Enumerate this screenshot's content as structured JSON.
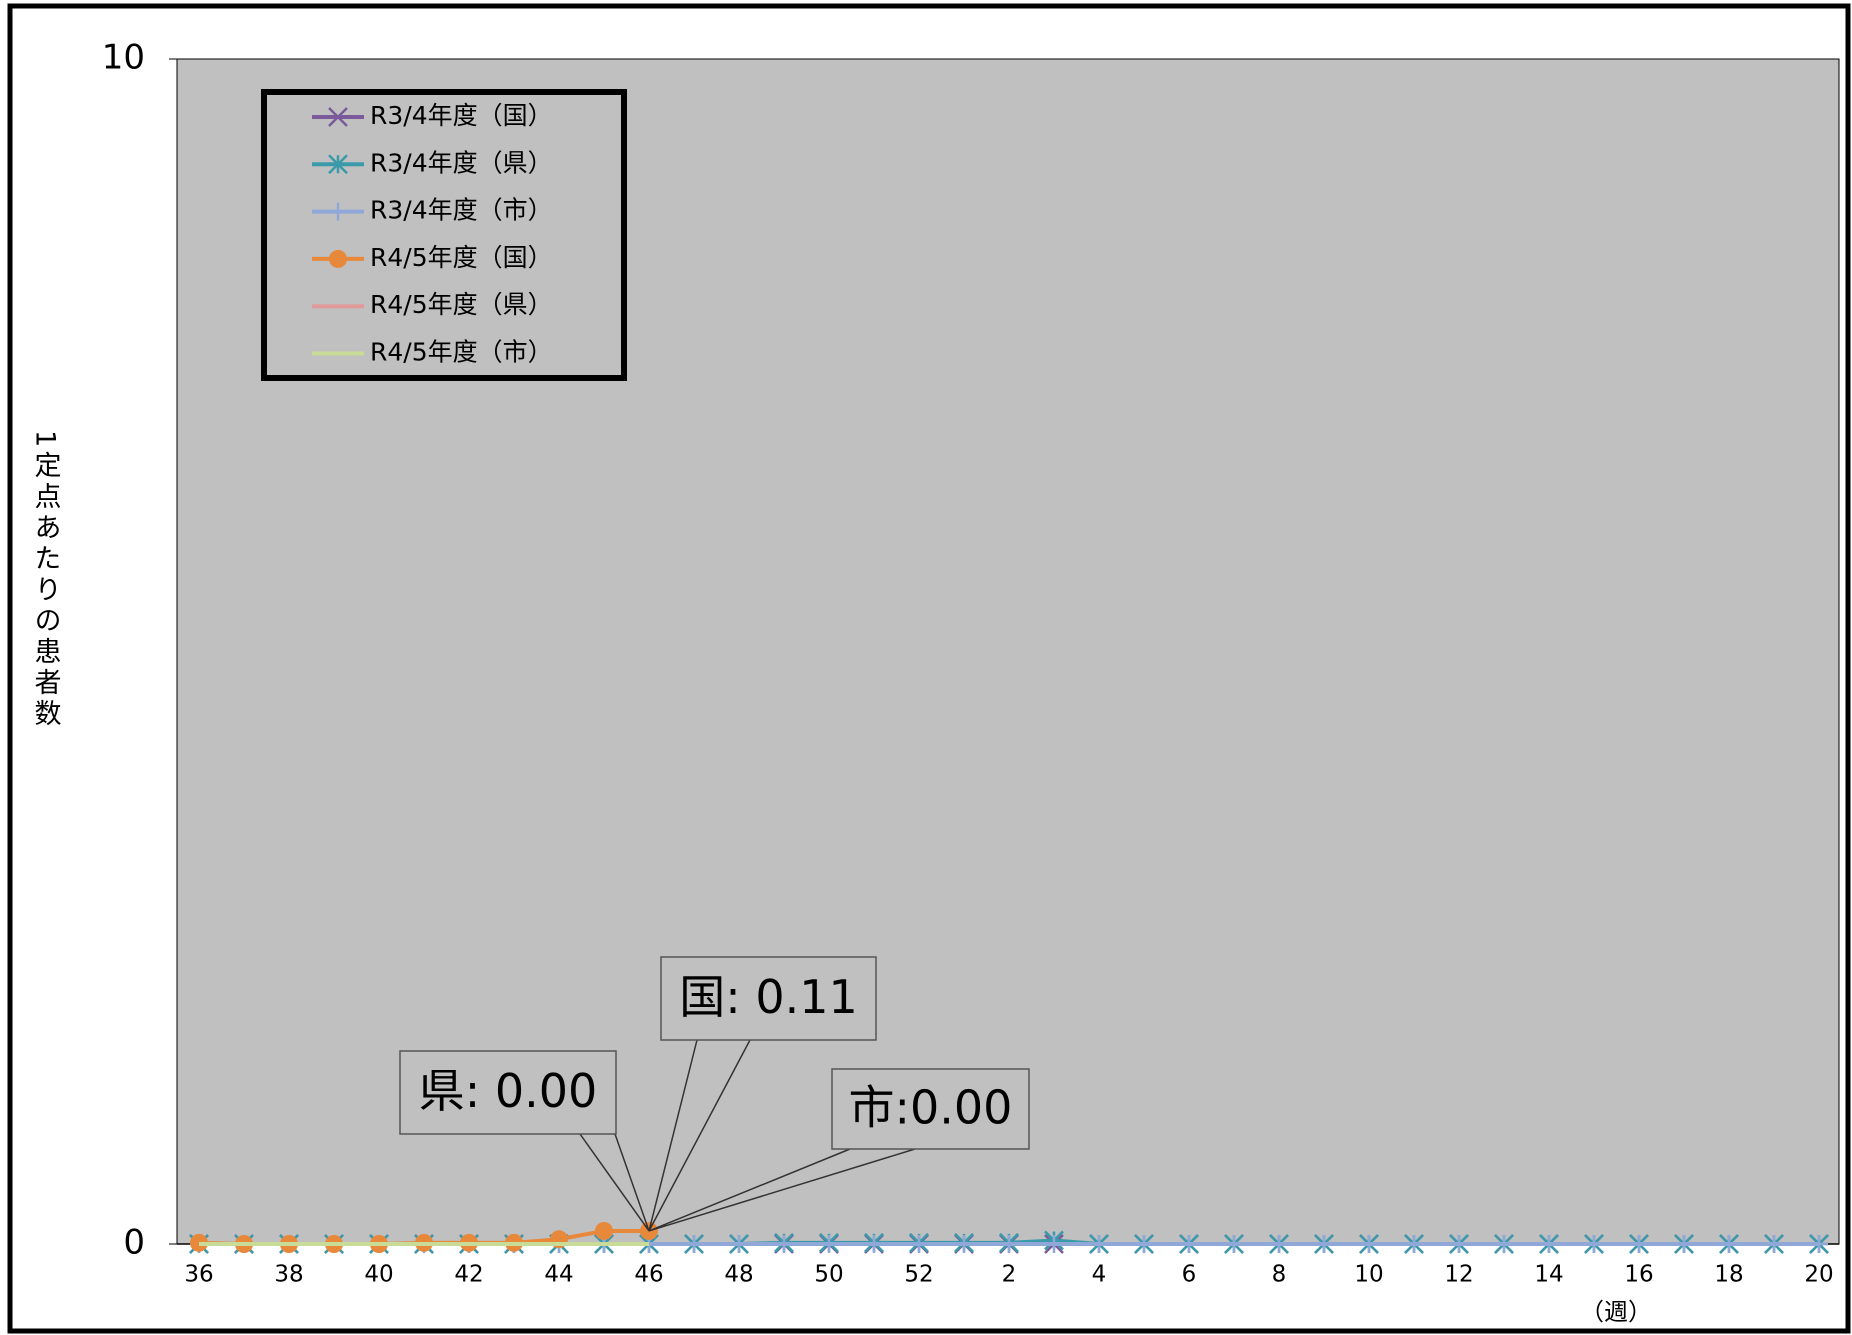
{
  "chart_data": {
    "type": "line",
    "y_label": "1定点あたりの患者数",
    "x_label": "（週）",
    "categories": [
      36,
      null,
      38,
      null,
      40,
      null,
      42,
      null,
      44,
      null,
      46,
      null,
      48,
      null,
      50,
      null,
      52,
      null,
      2,
      null,
      4,
      null,
      6,
      null,
      8,
      null,
      10,
      null,
      12,
      null,
      14,
      null,
      16,
      null,
      18,
      null,
      20
    ],
    "ylim": [
      0,
      10
    ],
    "yticks": [
      0,
      10
    ],
    "background": "#c0c0c0",
    "legend": "upper left",
    "series": [
      {
        "name": "R3/4年度（国）",
        "color": "#7a5a9a",
        "marker": "x",
        "values": [
          0,
          0,
          0,
          0,
          0,
          0,
          0,
          0,
          0,
          0,
          0,
          0,
          0,
          0,
          0,
          0,
          0,
          0,
          0,
          0,
          0,
          0,
          0,
          0,
          0,
          0,
          0,
          0,
          0,
          0,
          0,
          0,
          0,
          0,
          0,
          0,
          0
        ]
      },
      {
        "name": "R3/4年度（県）",
        "color": "#3a9aaa",
        "marker": "star",
        "values": [
          0,
          0,
          0,
          0,
          0,
          0,
          0,
          0,
          0,
          0,
          0,
          0,
          0,
          0.01,
          0.01,
          0.01,
          0.01,
          0.01,
          0.01,
          0.03,
          0,
          0,
          0,
          0,
          0,
          0,
          0,
          0,
          0,
          0,
          0,
          0,
          0,
          0,
          0,
          0,
          0
        ]
      },
      {
        "name": "R3/4年度（市）",
        "color": "#8fa8d8",
        "marker": "plus",
        "values": [
          0,
          0,
          0,
          0,
          0,
          0,
          0,
          0,
          0,
          0,
          0,
          0,
          0,
          0,
          0,
          0,
          0,
          0,
          0,
          0,
          0,
          0,
          0,
          0,
          0,
          0,
          0,
          0,
          0,
          0,
          0,
          0,
          0,
          0,
          0,
          0,
          0
        ]
      },
      {
        "name": "R4/5年度（国）",
        "color": "#e8883a",
        "marker": "circle",
        "values": [
          0.01,
          0,
          0,
          0,
          0,
          0.01,
          0.01,
          0.01,
          0.04,
          0.11,
          0.11,
          null,
          null,
          null,
          null,
          null,
          null,
          null,
          null,
          null,
          null,
          null,
          null,
          null,
          null,
          null,
          null,
          null,
          null,
          null,
          null,
          null,
          null,
          null,
          null,
          null,
          null
        ]
      },
      {
        "name": "R4/5年度（県）",
        "color": "#e09a9a",
        "marker": "none",
        "values": [
          0,
          0,
          0,
          0,
          0,
          0,
          0,
          0,
          0,
          0,
          0,
          null,
          null,
          null,
          null,
          null,
          null,
          null,
          null,
          null,
          null,
          null,
          null,
          null,
          null,
          null,
          null,
          null,
          null,
          null,
          null,
          null,
          null,
          null,
          null,
          null,
          null
        ]
      },
      {
        "name": "R4/5年度（市）",
        "color": "#c8dc98",
        "marker": "none",
        "values": [
          0,
          0,
          0,
          0,
          0,
          0,
          0,
          0,
          0,
          0,
          0,
          null,
          null,
          null,
          null,
          null,
          null,
          null,
          null,
          null,
          null,
          null,
          null,
          null,
          null,
          null,
          null,
          null,
          null,
          null,
          null,
          null,
          null,
          null,
          null,
          null,
          null
        ]
      }
    ],
    "annotations": [
      "県: 0.00",
      "国: 0.11",
      "市:0.00"
    ]
  }
}
